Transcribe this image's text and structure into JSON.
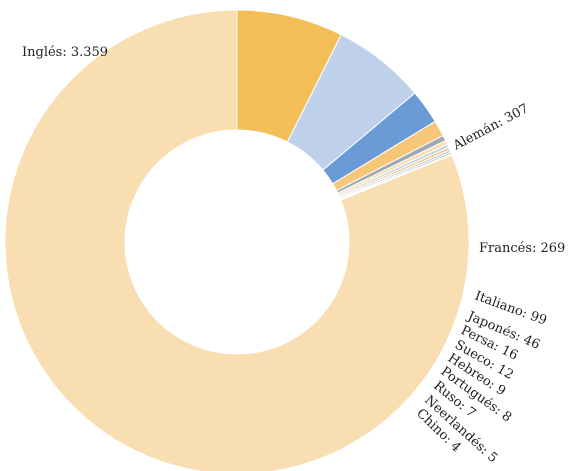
{
  "chart_data": {
    "type": "pie",
    "donut": true,
    "legend": "none",
    "series": [
      {
        "categories": [
          "Inglés",
          "Alemán",
          "Francés",
          "Italiano",
          "Japonés",
          "Persa",
          "Sueco",
          "Hebreo",
          "Portugués",
          "Ruso",
          "Neerlandés",
          "Chino"
        ],
        "values": [
          3359,
          307,
          269,
          99,
          46,
          16,
          12,
          9,
          8,
          7,
          5,
          4
        ],
        "labels": [
          "Inglés: 3.359",
          "Alemán: 307",
          "Francés: 269",
          "Italiano: 99",
          "Japonés: 46",
          "Persa: 16",
          "Sueco: 12",
          "Hebreo: 9",
          "Portugués: 8",
          "Ruso: 7",
          "Neerlandés: 5",
          "Chino: 4"
        ],
        "colors": [
          "#f8deb0",
          "#f2be55",
          "#bfd0ea",
          "#6a9bd6",
          "#f6c679",
          "#9fa7b3",
          "#f8deb0",
          "#bfd0ea",
          "#f6c679",
          "#bfd0ea",
          "#aab4c2",
          "#f8deb0"
        ]
      }
    ]
  }
}
